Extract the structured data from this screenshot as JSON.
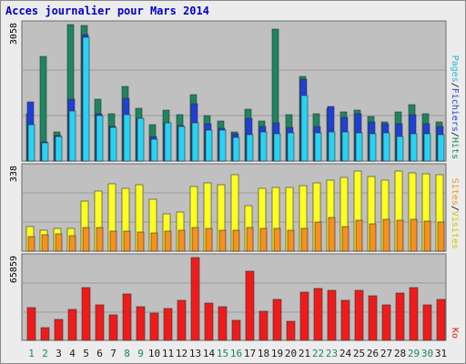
{
  "title": "Acces journalier pour Mars 2014",
  "colors": {
    "background": "#ececec",
    "plot_bg": "#c0c0c0",
    "grid": "#9c9c9c",
    "hits": "#1d8560",
    "files": "#1e3fd9",
    "pages": "#27d3f5",
    "visits": "#ffff1f",
    "sites": "#f7901e",
    "kb": "#ef1b1b",
    "weekend_label": "#1d8560",
    "weekday_label": "#1a1a1a",
    "legend_hits": "#1d8560",
    "legend_files": "#1e3fd9",
    "legend_pages": "#27b5e0",
    "legend_visits": "#c8c800",
    "legend_sites": "#f7901e",
    "legend_kb": "#ef1b1b"
  },
  "chart_data": [
    {
      "type": "bar",
      "panel": "hits-files-pages",
      "y_max_label": "3058",
      "ylim": [
        0,
        3058
      ],
      "legend": [
        "Pages",
        "Fichiers",
        "Hits"
      ],
      "legend_separator": "/",
      "x": [
        1,
        2,
        3,
        4,
        5,
        6,
        7,
        8,
        9,
        10,
        11,
        12,
        13,
        14,
        15,
        16,
        17,
        18,
        19,
        20,
        21,
        22,
        23,
        24,
        25,
        26,
        27,
        28,
        29,
        30,
        31
      ],
      "series": [
        {
          "name": "Hits",
          "values": [
            1060,
            2340,
            650,
            3050,
            3040,
            1390,
            1050,
            1670,
            1180,
            810,
            1140,
            1030,
            1480,
            1020,
            890,
            660,
            1160,
            890,
            2950,
            1040,
            1900,
            1070,
            1190,
            1110,
            1140,
            990,
            870,
            1100,
            1260,
            1070,
            880
          ]
        },
        {
          "name": "Fichiers",
          "values": [
            1320,
            430,
            580,
            1380,
            2840,
            1070,
            780,
            1410,
            950,
            560,
            850,
            800,
            1280,
            830,
            730,
            610,
            960,
            770,
            860,
            750,
            1830,
            770,
            1230,
            970,
            1050,
            880,
            840,
            830,
            1030,
            830,
            780
          ]
        },
        {
          "name": "Pages",
          "values": [
            820,
            410,
            560,
            1130,
            2770,
            1010,
            760,
            1040,
            950,
            480,
            850,
            780,
            850,
            700,
            700,
            540,
            600,
            650,
            620,
            640,
            1460,
            640,
            650,
            650,
            640,
            620,
            630,
            560,
            620,
            610,
            600
          ]
        }
      ]
    },
    {
      "type": "bar",
      "panel": "visits-sites",
      "y_max_label": "338",
      "ylim": [
        0,
        338
      ],
      "legend": [
        "Sites",
        "Visites"
      ],
      "legend_separator": "/",
      "x": [
        1,
        2,
        3,
        4,
        5,
        6,
        7,
        8,
        9,
        10,
        11,
        12,
        13,
        14,
        15,
        16,
        17,
        18,
        19,
        20,
        21,
        22,
        23,
        24,
        25,
        26,
        27,
        28,
        29,
        30,
        31
      ],
      "series": [
        {
          "name": "Visites",
          "values": [
            99,
            85,
            91,
            92,
            201,
            241,
            271,
            254,
            268,
            210,
            151,
            159,
            262,
            277,
            270,
            307,
            182,
            254,
            256,
            256,
            263,
            276,
            286,
            299,
            325,
            302,
            286,
            322,
            317,
            313,
            307
          ]
        },
        {
          "name": "Sites",
          "values": [
            59,
            66,
            71,
            61,
            96,
            95,
            82,
            82,
            78,
            72,
            82,
            83,
            95,
            91,
            85,
            84,
            96,
            92,
            91,
            83,
            91,
            118,
            136,
            101,
            126,
            110,
            130,
            125,
            128,
            120,
            116
          ]
        }
      ]
    },
    {
      "type": "bar",
      "panel": "kb",
      "y_max_label": "65859",
      "ylim": [
        0,
        65859
      ],
      "legend": [
        "Ko"
      ],
      "x": [
        1,
        2,
        3,
        4,
        5,
        6,
        7,
        8,
        9,
        10,
        11,
        12,
        13,
        14,
        15,
        16,
        17,
        18,
        19,
        20,
        21,
        22,
        23,
        24,
        25,
        26,
        27,
        28,
        29,
        30,
        31
      ],
      "series": [
        {
          "name": "Ko",
          "values": [
            26300,
            10400,
            16800,
            24300,
            41900,
            28300,
            20300,
            36700,
            26600,
            21600,
            25000,
            31800,
            65800,
            29600,
            26600,
            15600,
            55200,
            22800,
            32800,
            15000,
            38500,
            41000,
            39700,
            32200,
            39800,
            35500,
            28300,
            37300,
            42100,
            28100,
            32600
          ]
        }
      ]
    }
  ],
  "x_axis": {
    "labels": [
      "1",
      "2",
      "3",
      "4",
      "5",
      "6",
      "7",
      "8",
      "9",
      "10",
      "11",
      "12",
      "13",
      "14",
      "15",
      "16",
      "17",
      "18",
      "19",
      "20",
      "21",
      "22",
      "23",
      "24",
      "25",
      "26",
      "27",
      "28",
      "29",
      "30",
      "31"
    ],
    "weekend_days": [
      1,
      2,
      8,
      9,
      15,
      16,
      22,
      23,
      29,
      30
    ]
  }
}
